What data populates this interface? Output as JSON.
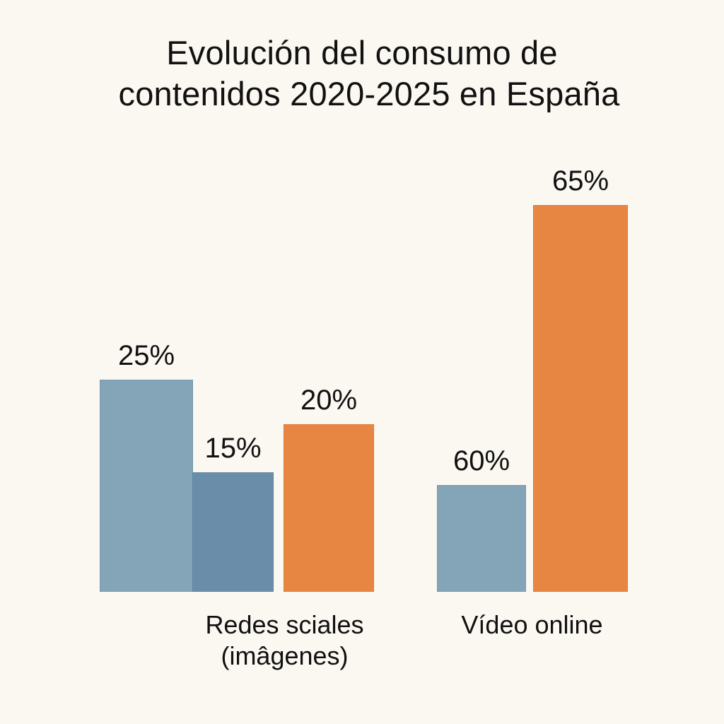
{
  "chart_data": {
    "type": "bar",
    "title": "Evolución del consumo de contenidos 2020-2025 en España",
    "title_lines": [
      "Evolución del consumo de",
      "contenidos 2020-2025 en España"
    ],
    "categories": [
      "Redes sciales (imâgenes)",
      "Vídeo online"
    ],
    "category_lines": [
      [
        "Redes sciales",
        "(imâgenes)"
      ],
      [
        "Vídeo online"
      ]
    ],
    "bars": [
      {
        "category": "Redes sciales (imâgenes)",
        "value": 25,
        "label": "25%",
        "color": "#84a5b8"
      },
      {
        "category": "Redes sciales (imâgenes)",
        "value": 15,
        "label": "15%",
        "color": "#6a8ea9"
      },
      {
        "category": "Redes sciales (imâgenes)",
        "value": 20,
        "label": "20%",
        "color": "#e68642"
      },
      {
        "category": "Vídeo online",
        "value": 60,
        "label": "60%",
        "color": "#84a5b8"
      },
      {
        "category": "Vídeo online",
        "value": 65,
        "label": "65%",
        "color": "#e68642"
      }
    ],
    "xlabel": "",
    "ylabel": "",
    "grid": false,
    "legend": "none"
  }
}
